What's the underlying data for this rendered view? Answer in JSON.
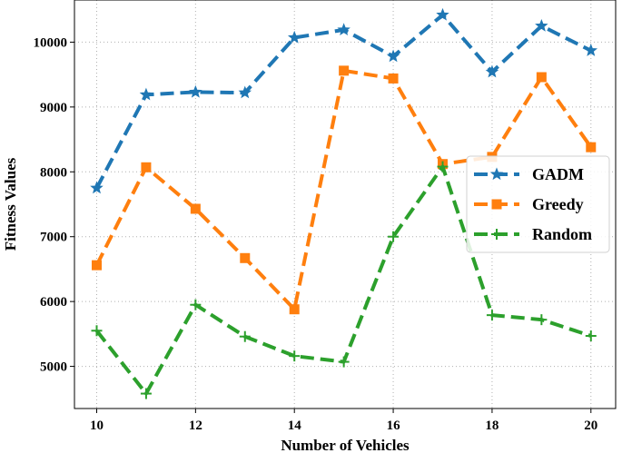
{
  "chart_data": {
    "type": "line",
    "xlabel": "Number of Vehicles",
    "ylabel": "Fitness Values",
    "x": [
      10,
      11,
      12,
      13,
      14,
      15,
      16,
      17,
      18,
      19,
      20
    ],
    "xlim": [
      9.55,
      20.5
    ],
    "ylim": [
      4350,
      10650
    ],
    "xticks": [
      10,
      12,
      14,
      16,
      18,
      20
    ],
    "yticks": [
      5000,
      6000,
      7000,
      8000,
      9000,
      10000
    ],
    "xtick_labels": [
      "10",
      "12",
      "14",
      "16",
      "18",
      "20"
    ],
    "ytick_labels": [
      "5000",
      "6000",
      "7000",
      "8000",
      "9000",
      "10000"
    ],
    "grid": true,
    "legend_position": "center-right",
    "series": [
      {
        "name": "GADM",
        "color": "#1f77b4",
        "marker": "star",
        "values": [
          7750,
          9190,
          9230,
          9220,
          10070,
          10190,
          9780,
          10420,
          9540,
          10250,
          9870
        ]
      },
      {
        "name": "Greedy",
        "color": "#ff7f0e",
        "marker": "square",
        "values": [
          6560,
          8070,
          7430,
          6670,
          5880,
          9560,
          9440,
          8120,
          8230,
          9460,
          8380
        ]
      },
      {
        "name": "Random",
        "color": "#2ca02c",
        "marker": "plus",
        "values": [
          5550,
          4580,
          5950,
          5460,
          5160,
          5070,
          7000,
          8080,
          5790,
          5720,
          5470
        ]
      }
    ]
  }
}
